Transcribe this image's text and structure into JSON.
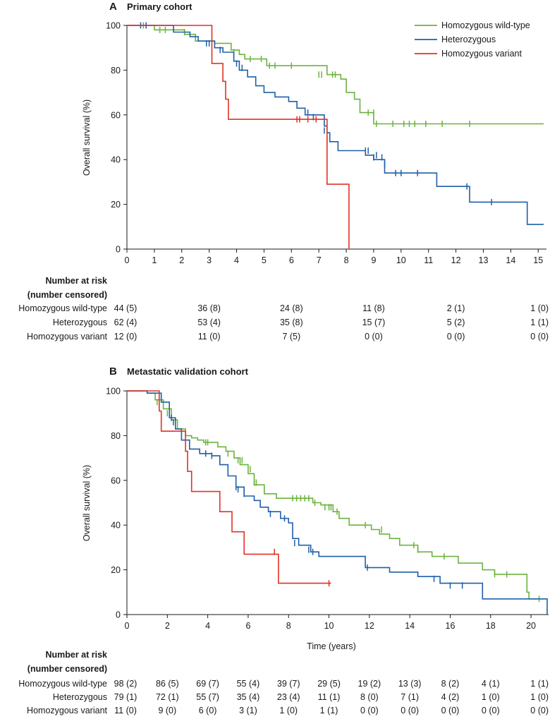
{
  "colors": {
    "Homozygous wild-type": "#6cb33e",
    "Heterozygous": "#1f5fa8",
    "Homozygous variant": "#e23124",
    "axis": "#1a1a1a"
  },
  "chart_data": [
    {
      "type": "line",
      "panel": "A",
      "title": "Primary cohort",
      "xlabel": "",
      "ylabel": "Overall survival (%)",
      "xlim": [
        0,
        15.2
      ],
      "ylim": [
        0,
        100
      ],
      "x_ticks": [
        "0",
        "1",
        "2",
        "3",
        "4",
        "5",
        "6",
        "7",
        "8",
        "9",
        "10",
        "11",
        "12",
        "13",
        "14",
        "15"
      ],
      "y_ticks": [
        "0",
        "20",
        "40",
        "60",
        "80",
        "100"
      ],
      "legend_position": "top-right",
      "series": [
        {
          "name": "Homozygous wild-type",
          "steps": [
            [
              0,
              100
            ],
            [
              0.6,
              100
            ],
            [
              1.0,
              98
            ],
            [
              1.9,
              98
            ],
            [
              2.1,
              96
            ],
            [
              2.5,
              93
            ],
            [
              3.2,
              92
            ],
            [
              3.8,
              89
            ],
            [
              4.1,
              87
            ],
            [
              4.3,
              85
            ],
            [
              5.1,
              82
            ],
            [
              7.3,
              78
            ],
            [
              7.8,
              76
            ],
            [
              8.0,
              70
            ],
            [
              8.3,
              67
            ],
            [
              8.5,
              61
            ],
            [
              9.0,
              56
            ],
            [
              15.2,
              56
            ]
          ],
          "censored": [
            [
              0.6,
              100
            ],
            [
              0.7,
              100
            ],
            [
              1.2,
              98
            ],
            [
              1.4,
              98
            ],
            [
              2.1,
              97
            ],
            [
              3.9,
              88
            ],
            [
              4.5,
              85
            ],
            [
              4.9,
              85
            ],
            [
              5.2,
              82
            ],
            [
              5.4,
              82
            ],
            [
              6.0,
              82
            ],
            [
              7.0,
              78
            ],
            [
              7.1,
              78
            ],
            [
              7.5,
              78
            ],
            [
              7.6,
              78
            ],
            [
              8.8,
              61
            ],
            [
              9.0,
              61
            ],
            [
              9.1,
              56
            ],
            [
              9.7,
              56
            ],
            [
              10.1,
              56
            ],
            [
              10.3,
              56
            ],
            [
              10.5,
              56
            ],
            [
              10.9,
              56
            ],
            [
              11.5,
              56
            ],
            [
              12.5,
              56
            ]
          ]
        },
        {
          "name": "Heterozygous",
          "steps": [
            [
              0,
              100
            ],
            [
              0.6,
              100
            ],
            [
              1.7,
              97
            ],
            [
              2.3,
              95
            ],
            [
              2.6,
              93
            ],
            [
              3.2,
              90
            ],
            [
              3.5,
              88
            ],
            [
              3.9,
              84
            ],
            [
              4.1,
              80
            ],
            [
              4.4,
              77
            ],
            [
              4.7,
              73
            ],
            [
              5.0,
              70
            ],
            [
              5.4,
              68
            ],
            [
              5.9,
              66
            ],
            [
              6.2,
              63
            ],
            [
              6.5,
              60
            ],
            [
              7.2,
              55
            ],
            [
              7.3,
              52
            ],
            [
              7.4,
              48
            ],
            [
              7.7,
              44
            ],
            [
              8.7,
              42
            ],
            [
              9.0,
              40
            ],
            [
              9.4,
              34
            ],
            [
              11.3,
              28
            ],
            [
              12.5,
              21
            ],
            [
              14.6,
              11
            ],
            [
              15.2,
              11
            ]
          ],
          "censored": [
            [
              0.5,
              100
            ],
            [
              0.7,
              100
            ],
            [
              2.9,
              92
            ],
            [
              3.0,
              92
            ],
            [
              3.4,
              89
            ],
            [
              4.0,
              83
            ],
            [
              4.2,
              81
            ],
            [
              6.6,
              61
            ],
            [
              6.8,
              59
            ],
            [
              7.2,
              53
            ],
            [
              7.3,
              49
            ],
            [
              8.7,
              44
            ],
            [
              8.8,
              44
            ],
            [
              9.0,
              41
            ],
            [
              9.1,
              42
            ],
            [
              9.3,
              41
            ],
            [
              9.4,
              38
            ],
            [
              9.8,
              34
            ],
            [
              10.0,
              34
            ],
            [
              10.6,
              34
            ],
            [
              12.4,
              28
            ],
            [
              13.3,
              21
            ]
          ]
        },
        {
          "name": "Homozygous variant",
          "steps": [
            [
              0,
              100
            ],
            [
              2.8,
              100
            ],
            [
              3.1,
              83
            ],
            [
              3.5,
              75
            ],
            [
              3.6,
              67
            ],
            [
              3.7,
              58
            ],
            [
              7.3,
              58
            ],
            [
              7.3,
              29
            ],
            [
              8.1,
              29
            ],
            [
              8.1,
              0
            ]
          ],
          "censored": [
            [
              6.2,
              58
            ],
            [
              6.3,
              58
            ],
            [
              6.6,
              58
            ],
            [
              6.9,
              58
            ]
          ]
        }
      ],
      "risk_table": {
        "header": [
          "Number at risk",
          "(number censored)"
        ],
        "timepoints": [
          0,
          3,
          6,
          9,
          12,
          15
        ],
        "rows": [
          {
            "label": "Homozygous wild-type",
            "values": [
              "44 (5)",
              "36 (8)",
              "24 (8)",
              "11 (8)",
              "2 (1)",
              "1 (0)"
            ]
          },
          {
            "label": "Heterozygous",
            "values": [
              "62 (4)",
              "53 (4)",
              "35 (8)",
              "15 (7)",
              "5 (2)",
              "1 (1)"
            ]
          },
          {
            "label": "Homozygous variant",
            "values": [
              "12 (0)",
              "11 (0)",
              "7 (5)",
              "0 (0)",
              "0 (0)",
              "0 (0)"
            ]
          }
        ]
      }
    },
    {
      "type": "line",
      "panel": "B",
      "title": "Metastatic validation cohort",
      "xlabel": "Time (years)",
      "ylabel": "Overall survival (%)",
      "xlim": [
        0,
        20.8
      ],
      "ylim": [
        0,
        100
      ],
      "x_ticks": [
        "0",
        "2",
        "4",
        "6",
        "8",
        "10",
        "12",
        "14",
        "16",
        "18",
        "20"
      ],
      "y_ticks": [
        "0",
        "20",
        "40",
        "60",
        "80",
        "100"
      ],
      "series": [
        {
          "name": "Homozygous wild-type",
          "steps": [
            [
              0,
              100
            ],
            [
              1.0,
              99
            ],
            [
              1.4,
              96
            ],
            [
              1.8,
              92
            ],
            [
              2.2,
              87
            ],
            [
              2.5,
              83
            ],
            [
              2.9,
              80
            ],
            [
              3.2,
              79
            ],
            [
              3.5,
              78
            ],
            [
              3.8,
              77
            ],
            [
              4.5,
              75
            ],
            [
              4.9,
              73
            ],
            [
              5.3,
              70
            ],
            [
              5.6,
              67
            ],
            [
              6.0,
              63
            ],
            [
              6.3,
              58
            ],
            [
              6.8,
              54
            ],
            [
              7.4,
              52
            ],
            [
              9.2,
              50
            ],
            [
              9.6,
              49
            ],
            [
              10.2,
              46
            ],
            [
              10.5,
              43
            ],
            [
              11.0,
              40
            ],
            [
              12.1,
              38
            ],
            [
              12.5,
              36
            ],
            [
              13.0,
              34
            ],
            [
              13.5,
              31
            ],
            [
              14.4,
              28
            ],
            [
              15.1,
              26
            ],
            [
              16.4,
              23
            ],
            [
              17.6,
              20
            ],
            [
              18.2,
              18
            ],
            [
              19.8,
              10
            ],
            [
              19.9,
              7
            ],
            [
              20.6,
              7
            ]
          ],
          "censored": [
            [
              1.5,
              95
            ],
            [
              2.0,
              90
            ],
            [
              2.2,
              88
            ],
            [
              3.9,
              77
            ],
            [
              4.0,
              77
            ],
            [
              5.0,
              72
            ],
            [
              5.5,
              69
            ],
            [
              5.7,
              69
            ],
            [
              6.1,
              65
            ],
            [
              6.3,
              59
            ],
            [
              6.4,
              59
            ],
            [
              8.2,
              52
            ],
            [
              8.4,
              52
            ],
            [
              8.6,
              52
            ],
            [
              8.8,
              52
            ],
            [
              9.0,
              52
            ],
            [
              9.3,
              50
            ],
            [
              9.8,
              48
            ],
            [
              10.0,
              48
            ],
            [
              10.1,
              48
            ],
            [
              10.4,
              46
            ],
            [
              11.8,
              40
            ],
            [
              12.6,
              38
            ],
            [
              14.2,
              31
            ],
            [
              14.4,
              29
            ],
            [
              15.7,
              26
            ],
            [
              18.2,
              18
            ],
            [
              18.8,
              18
            ],
            [
              20.4,
              7
            ]
          ]
        },
        {
          "name": "Heterozygous",
          "steps": [
            [
              0,
              100
            ],
            [
              1.0,
              99
            ],
            [
              1.7,
              95
            ],
            [
              2.1,
              88
            ],
            [
              2.4,
              83
            ],
            [
              2.7,
              78
            ],
            [
              3.1,
              74
            ],
            [
              3.6,
              72
            ],
            [
              4.2,
              71
            ],
            [
              4.6,
              67
            ],
            [
              5.0,
              62
            ],
            [
              5.4,
              57
            ],
            [
              5.8,
              53
            ],
            [
              6.3,
              51
            ],
            [
              6.6,
              48
            ],
            [
              7.0,
              46
            ],
            [
              7.6,
              43
            ],
            [
              8.0,
              41
            ],
            [
              8.2,
              34
            ],
            [
              8.5,
              31
            ],
            [
              9.1,
              28
            ],
            [
              9.5,
              26
            ],
            [
              11.8,
              21
            ],
            [
              13.0,
              19
            ],
            [
              14.4,
              17
            ],
            [
              15.5,
              14
            ],
            [
              17.6,
              7
            ],
            [
              20.8,
              7
            ],
            [
              20.8,
              0
            ]
          ],
          "censored": [
            [
              2.2,
              88
            ],
            [
              2.3,
              86
            ],
            [
              3.9,
              72
            ],
            [
              4.2,
              71
            ],
            [
              5.4,
              57
            ],
            [
              5.5,
              56
            ],
            [
              5.8,
              54
            ],
            [
              7.1,
              45
            ],
            [
              7.8,
              43
            ],
            [
              8.3,
              32
            ],
            [
              9.0,
              29
            ],
            [
              9.2,
              28
            ],
            [
              11.9,
              21
            ],
            [
              15.2,
              16
            ],
            [
              16.0,
              13
            ],
            [
              16.6,
              13
            ]
          ]
        },
        {
          "name": "Homozygous variant",
          "steps": [
            [
              0,
              100
            ],
            [
              1.5,
              100
            ],
            [
              1.6,
              91
            ],
            [
              1.7,
              82
            ],
            [
              2.9,
              73
            ],
            [
              3.0,
              64
            ],
            [
              3.2,
              55
            ],
            [
              4.6,
              46
            ],
            [
              5.2,
              37
            ],
            [
              5.8,
              27
            ],
            [
              7.3,
              27
            ],
            [
              7.5,
              14
            ],
            [
              10.1,
              14
            ]
          ],
          "censored": [
            [
              7.3,
              28
            ],
            [
              10.0,
              14
            ]
          ]
        }
      ],
      "risk_table": {
        "header": [
          "Number at risk",
          "(number censored)"
        ],
        "timepoints": [
          0,
          2,
          4,
          6,
          8,
          10,
          12,
          14,
          16,
          18,
          20
        ],
        "rows": [
          {
            "label": "Homozygous wild-type",
            "values": [
              "98 (2)",
              "86 (5)",
              "69 (7)",
              "55 (4)",
              "39 (7)",
              "29 (5)",
              "19 (2)",
              "13 (3)",
              "8 (2)",
              "4 (1)",
              "1 (1)"
            ]
          },
          {
            "label": "Heterozygous",
            "values": [
              "79 (1)",
              "72 (1)",
              "55 (7)",
              "35 (4)",
              "23 (4)",
              "11 (1)",
              "8 (0)",
              "7 (1)",
              "4 (2)",
              "1 (0)",
              "1 (0)"
            ]
          },
          {
            "label": "Homozygous variant",
            "values": [
              "11 (0)",
              "9 (0)",
              "6 (0)",
              "3 (1)",
              "1 (0)",
              "1 (1)",
              "0 (0)",
              "0 (0)",
              "0 (0)",
              "0 (0)",
              "0 (0)"
            ]
          }
        ]
      }
    }
  ]
}
